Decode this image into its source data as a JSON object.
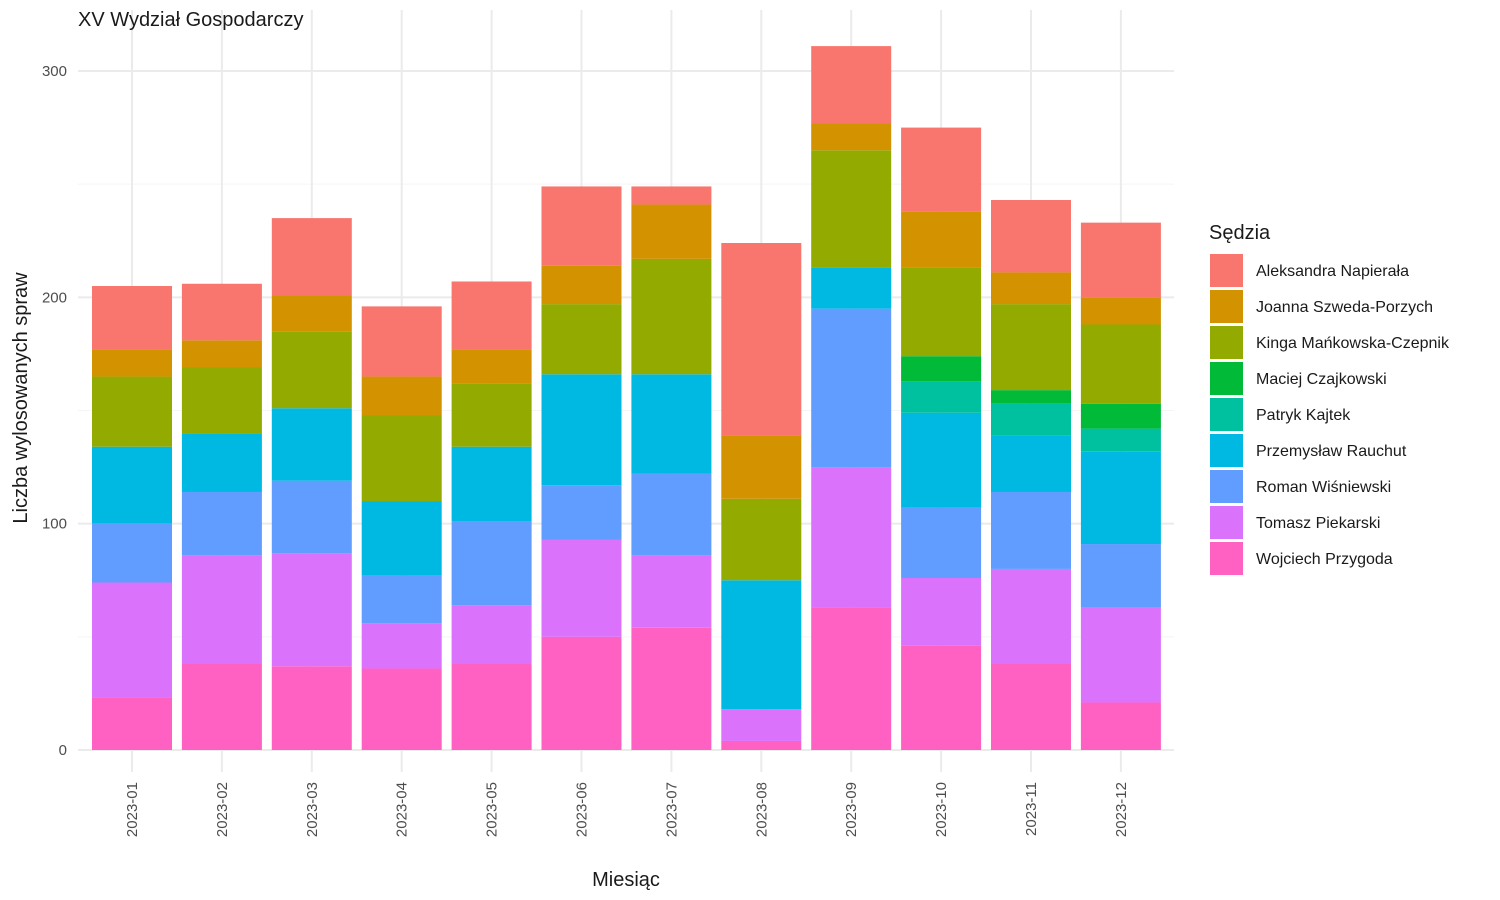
{
  "chart_data": {
    "type": "bar",
    "stacked": true,
    "title": "XV Wydział Gospodarczy",
    "xlabel": "Miesiąc",
    "ylabel": "Liczba wylosowanych spraw",
    "ylim": [
      0,
      320
    ],
    "yticks": [
      0,
      100,
      200,
      300
    ],
    "grid": true,
    "legend_position": "right",
    "legend_title": "Sędzia",
    "categories": [
      "2023-01",
      "2023-02",
      "2023-03",
      "2023-04",
      "2023-05",
      "2023-06",
      "2023-07",
      "2023-08",
      "2023-09",
      "2023-10",
      "2023-11",
      "2023-12"
    ],
    "series": [
      {
        "name": "Wojciech Przygoda",
        "color": "#FF61C3",
        "values": [
          23,
          38,
          37,
          36,
          38,
          50,
          54,
          4,
          63,
          46,
          38,
          21
        ]
      },
      {
        "name": "Tomasz Piekarski",
        "color": "#DB72FB",
        "values": [
          51,
          48,
          50,
          20,
          26,
          43,
          32,
          14,
          62,
          30,
          42,
          42
        ]
      },
      {
        "name": "Roman Wiśniewski",
        "color": "#619CFF",
        "values": [
          26,
          28,
          32,
          21,
          37,
          24,
          36,
          0,
          70,
          31,
          34,
          28
        ]
      },
      {
        "name": "Przemysław Rauchut",
        "color": "#00B9E3",
        "values": [
          34,
          26,
          32,
          33,
          33,
          49,
          44,
          57,
          18,
          42,
          25,
          41
        ]
      },
      {
        "name": "Patryk Kajtek",
        "color": "#00C19F",
        "values": [
          0,
          0,
          0,
          0,
          0,
          0,
          0,
          0,
          0,
          14,
          14,
          10
        ]
      },
      {
        "name": "Maciej Czajkowski",
        "color": "#00BA38",
        "values": [
          0,
          0,
          0,
          0,
          0,
          0,
          0,
          0,
          0,
          11,
          6,
          11
        ]
      },
      {
        "name": "Kinga Mańkowska-Czepnik",
        "color": "#93AA00",
        "values": [
          31,
          29,
          34,
          38,
          28,
          31,
          51,
          36,
          52,
          39,
          38,
          35
        ]
      },
      {
        "name": "Joanna Szweda-Porzych",
        "color": "#D39200",
        "values": [
          12,
          12,
          16,
          17,
          15,
          17,
          24,
          28,
          12,
          25,
          14,
          12
        ]
      },
      {
        "name": "Aleksandra Napierała",
        "color": "#F8766D",
        "values": [
          28,
          25,
          34,
          31,
          30,
          35,
          8,
          85,
          34,
          37,
          32,
          33
        ]
      }
    ],
    "legend_order": [
      "Aleksandra Napierała",
      "Joanna Szweda-Porzych",
      "Kinga Mańkowska-Czepnik",
      "Maciej Czajkowski",
      "Patryk Kajtek",
      "Przemysław Rauchut",
      "Roman Wiśniewski",
      "Tomasz Piekarski",
      "Wojciech Przygoda"
    ]
  }
}
